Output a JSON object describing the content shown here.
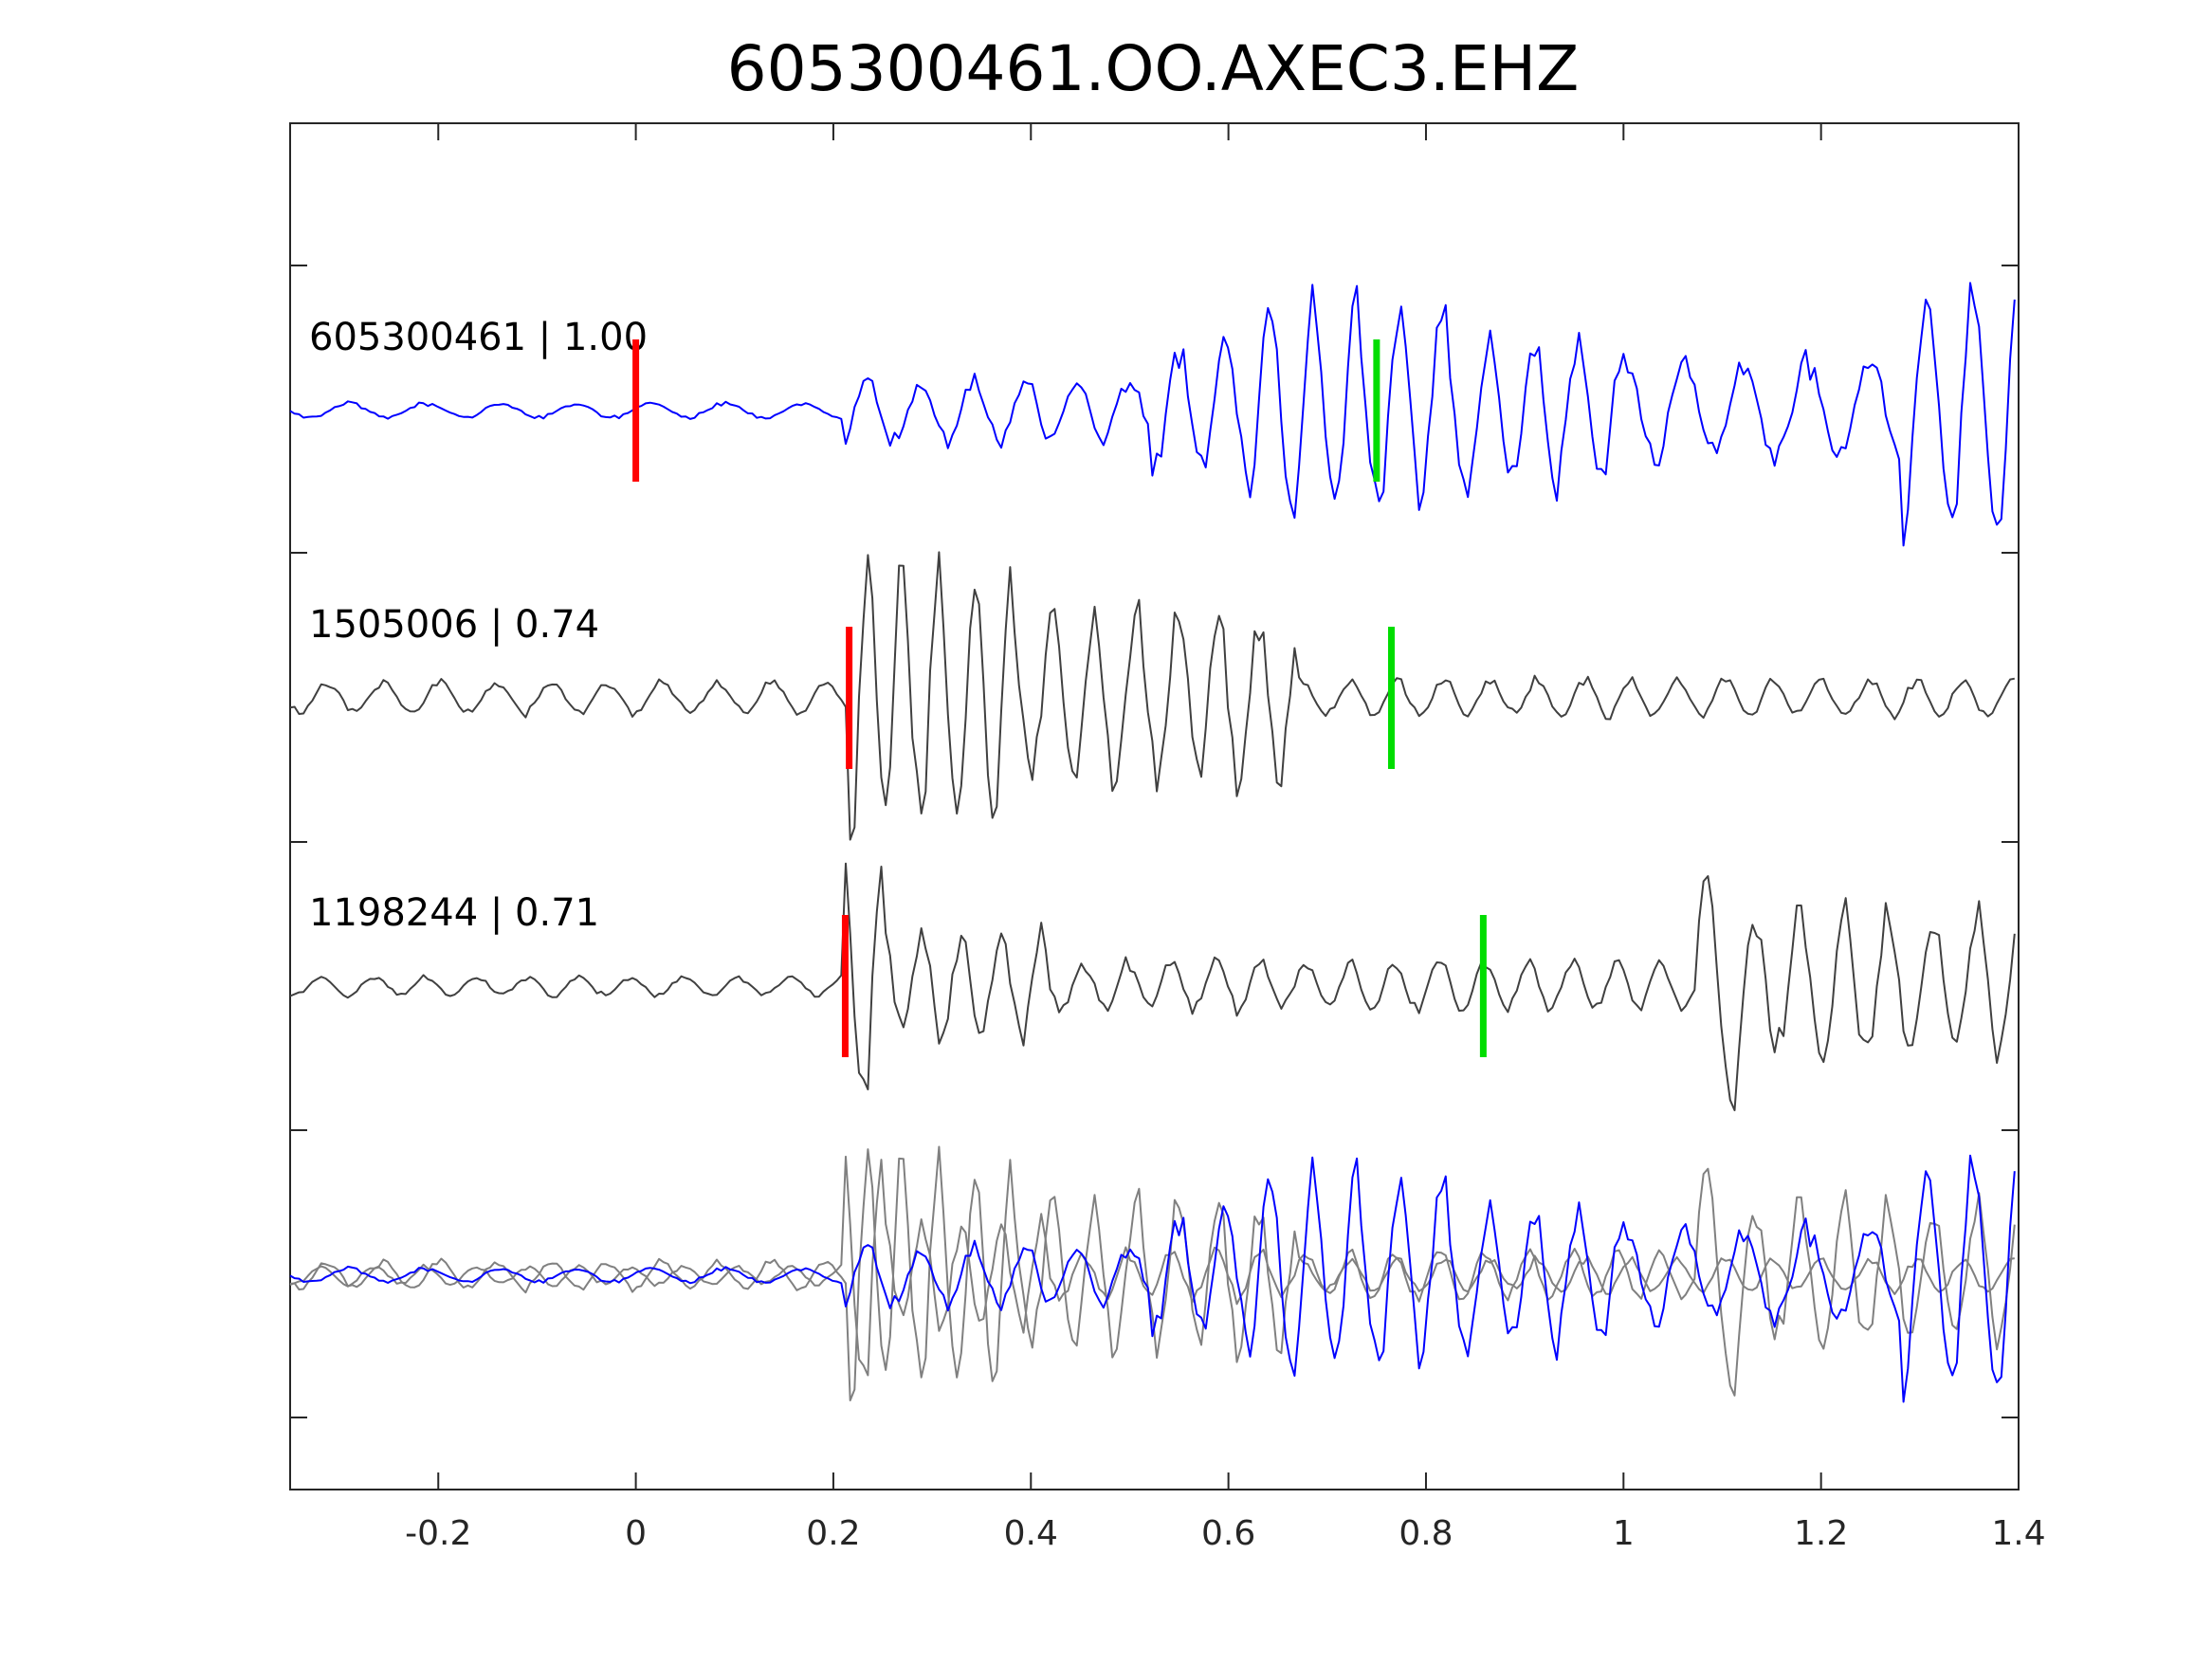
{
  "chart_data": {
    "type": "line",
    "title": "605300461.OO.AXEC3.EHZ",
    "xlabel": "",
    "ylabel": "",
    "xlim": [
      -0.35,
      1.4
    ],
    "grid": false,
    "x_ticks": [
      {
        "value": -0.2,
        "label": "-0.2"
      },
      {
        "value": 0,
        "label": "0"
      },
      {
        "value": 0.2,
        "label": "0.2"
      },
      {
        "value": 0.4,
        "label": "0.4"
      },
      {
        "value": 0.6,
        "label": "0.6"
      },
      {
        "value": 0.8,
        "label": "0.8"
      },
      {
        "value": 1,
        "label": "1"
      },
      {
        "value": 1.2,
        "label": "1.2"
      },
      {
        "value": 1.4,
        "label": "1.4"
      }
    ],
    "traces": [
      {
        "label": "605300461 | 1.00",
        "id": "605300461",
        "correlation": 1.0,
        "color": "#0000ff",
        "p_pick": 0.0,
        "s_pick": 0.75,
        "onset": 0.21,
        "sections": [
          {
            "start": -0.35,
            "end": 0.21,
            "amp": 0.06,
            "freq": 13
          },
          {
            "start": 0.21,
            "end": 0.52,
            "amp": 0.25,
            "freq": 19
          },
          {
            "start": 0.52,
            "end": 0.62,
            "amp": 0.5,
            "freq": 21
          },
          {
            "start": 0.62,
            "end": 0.82,
            "amp": 0.85,
            "freq": 23
          },
          {
            "start": 0.82,
            "end": 1.0,
            "amp": 0.6,
            "freq": 22
          },
          {
            "start": 1.0,
            "end": 1.28,
            "amp": 0.4,
            "freq": 16
          },
          {
            "start": 1.28,
            "end": 1.4,
            "amp": 0.95,
            "freq": 20
          }
        ]
      },
      {
        "label": "1505006 | 0.74",
        "id": "1505006",
        "correlation": 0.74,
        "color": "#404040",
        "p_pick": 0.216,
        "s_pick": 0.765,
        "onset": 0.216,
        "sections": [
          {
            "start": -0.35,
            "end": 0.216,
            "amp": 0.12,
            "freq": 18
          },
          {
            "start": 0.216,
            "end": 0.38,
            "amp": 1.0,
            "freq": 28
          },
          {
            "start": 0.38,
            "end": 0.67,
            "amp": 0.62,
            "freq": 24
          },
          {
            "start": 0.67,
            "end": 1.4,
            "amp": 0.14,
            "freq": 21
          }
        ]
      },
      {
        "label": "1198244 | 0.71",
        "id": "1198244",
        "correlation": 0.71,
        "color": "#404040",
        "p_pick": 0.212,
        "s_pick": 0.858,
        "onset": 0.212,
        "sections": [
          {
            "start": -0.35,
            "end": 0.212,
            "amp": 0.08,
            "freq": 19
          },
          {
            "start": 0.212,
            "end": 0.25,
            "amp": 1.0,
            "freq": 25
          },
          {
            "start": 0.25,
            "end": 0.42,
            "amp": 0.45,
            "freq": 25
          },
          {
            "start": 0.42,
            "end": 1.07,
            "amp": 0.2,
            "freq": 22
          },
          {
            "start": 1.07,
            "end": 1.12,
            "amp": 1.0,
            "freq": 20
          },
          {
            "start": 1.12,
            "end": 1.4,
            "amp": 0.6,
            "freq": 22
          }
        ]
      }
    ],
    "overlay": {
      "description_in_picture": "",
      "series_ids": [
        "605300461",
        "1505006",
        "1198244"
      ],
      "colors": [
        "#808080",
        "#808080",
        "#0000ff"
      ]
    },
    "pick_colors": {
      "p": "#ff0000",
      "s": "#00dd00"
    }
  }
}
